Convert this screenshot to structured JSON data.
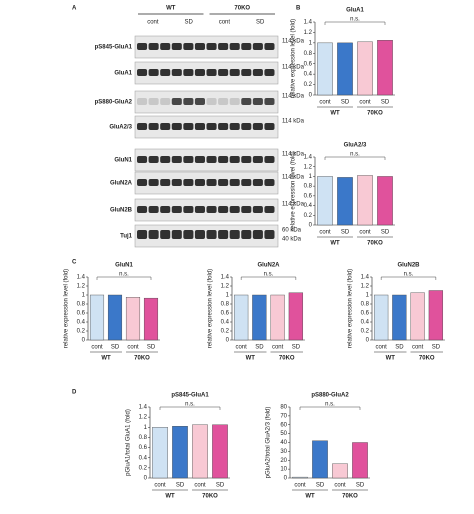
{
  "panel_labels": [
    "A",
    "B",
    "C",
    "D"
  ],
  "blot": {
    "genotypes": [
      "WT",
      "70KO"
    ],
    "conditions": [
      "cont",
      "SD",
      "cont",
      "SD"
    ],
    "rows": [
      {
        "label": "pS845-GluA1",
        "markers": [
          "114 kDa"
        ]
      },
      {
        "label": "GluA1",
        "markers": [
          "114 kDa"
        ]
      },
      {
        "label": "pS880-GluA2",
        "markers": [
          "114 kDa"
        ]
      },
      {
        "label": "GluA2/3",
        "markers": [
          "114 kDa"
        ]
      },
      {
        "label": "GluN1",
        "markers": [
          "114 kDa"
        ]
      },
      {
        "label": "GluN2A",
        "markers": [
          "114 kDa"
        ]
      },
      {
        "label": "GluN2B",
        "markers": [
          "114 kDa"
        ]
      },
      {
        "label": "Tuj1",
        "markers": [
          "60 kDa",
          "40 kDa"
        ]
      }
    ]
  },
  "chart_data": [
    {
      "type": "bar",
      "title": "GluA1",
      "ylabel": "relative expression level (fold)",
      "categories": [
        "cont",
        "SD",
        "cont",
        "SD"
      ],
      "groups": [
        "WT",
        "70KO"
      ],
      "values": [
        1.0,
        1.0,
        1.02,
        1.05
      ],
      "colors": [
        "#cfe2f3",
        "#3b78c9",
        "#f8c9d4",
        "#e0529c"
      ],
      "ylim": [
        0,
        1.4
      ],
      "yticks": [
        0,
        0.2,
        0.4,
        0.6,
        0.8,
        1,
        1.2,
        1.4
      ],
      "annotation": "n.s."
    },
    {
      "type": "bar",
      "title": "GluA2/3",
      "ylabel": "relative expression level (fold)",
      "categories": [
        "cont",
        "SD",
        "cont",
        "SD"
      ],
      "groups": [
        "WT",
        "70KO"
      ],
      "values": [
        1.0,
        0.98,
        1.02,
        1.0
      ],
      "colors": [
        "#cfe2f3",
        "#3b78c9",
        "#f8c9d4",
        "#e0529c"
      ],
      "ylim": [
        0,
        1.4
      ],
      "yticks": [
        0,
        0.2,
        0.4,
        0.6,
        0.8,
        1,
        1.2,
        1.4
      ],
      "annotation": "n.s."
    },
    {
      "type": "bar",
      "title": "GluN1",
      "ylabel": "relative expression level (fold)",
      "categories": [
        "cont",
        "SD",
        "cont",
        "SD"
      ],
      "groups": [
        "WT",
        "70KO"
      ],
      "values": [
        1.0,
        1.0,
        0.95,
        0.93
      ],
      "colors": [
        "#cfe2f3",
        "#3b78c9",
        "#f8c9d4",
        "#e0529c"
      ],
      "ylim": [
        0,
        1.4
      ],
      "yticks": [
        0,
        0.2,
        0.4,
        0.6,
        0.8,
        1,
        1.2,
        1.4
      ],
      "annotation": "n.s."
    },
    {
      "type": "bar",
      "title": "GluN2A",
      "ylabel": "relative expression level (fold)",
      "categories": [
        "cont",
        "SD",
        "cont",
        "SD"
      ],
      "groups": [
        "WT",
        "70KO"
      ],
      "values": [
        1.0,
        1.0,
        1.0,
        1.05
      ],
      "colors": [
        "#cfe2f3",
        "#3b78c9",
        "#f8c9d4",
        "#e0529c"
      ],
      "ylim": [
        0,
        1.4
      ],
      "yticks": [
        0,
        0.2,
        0.4,
        0.6,
        0.8,
        1,
        1.2,
        1.4
      ],
      "annotation": "n.s."
    },
    {
      "type": "bar",
      "title": "GluN2B",
      "ylabel": "relative expression level (fold)",
      "categories": [
        "cont",
        "SD",
        "cont",
        "SD"
      ],
      "groups": [
        "WT",
        "70KO"
      ],
      "values": [
        1.0,
        1.0,
        1.05,
        1.1
      ],
      "colors": [
        "#cfe2f3",
        "#3b78c9",
        "#f8c9d4",
        "#e0529c"
      ],
      "ylim": [
        0,
        1.4
      ],
      "yticks": [
        0,
        0.2,
        0.4,
        0.6,
        0.8,
        1,
        1.2,
        1.4
      ],
      "annotation": "n.s."
    },
    {
      "type": "bar",
      "title": "pS845-GluA1",
      "ylabel": "pGluA1/total GluA1 (fold)",
      "categories": [
        "cont",
        "SD",
        "cont",
        "SD"
      ],
      "groups": [
        "WT",
        "70KO"
      ],
      "values": [
        1.0,
        1.02,
        1.05,
        1.05
      ],
      "colors": [
        "#cfe2f3",
        "#3b78c9",
        "#f8c9d4",
        "#e0529c"
      ],
      "ylim": [
        0,
        1.4
      ],
      "yticks": [
        0,
        0.2,
        0.4,
        0.6,
        0.8,
        1,
        1.2,
        1.4
      ],
      "annotation": "n.s."
    },
    {
      "type": "bar",
      "title": "pS880-GluA2",
      "ylabel": "pGluA2/total GluA2/3 (fold)",
      "categories": [
        "cont",
        "SD",
        "cont",
        "SD"
      ],
      "groups": [
        "WT",
        "70KO"
      ],
      "values": [
        1,
        42,
        16,
        40
      ],
      "colors": [
        "#cfe2f3",
        "#3b78c9",
        "#f8c9d4",
        "#e0529c"
      ],
      "ylim": [
        0,
        80
      ],
      "yticks": [
        0,
        10,
        20,
        30,
        40,
        50,
        60,
        70,
        80
      ],
      "annotation": "n.s."
    }
  ]
}
